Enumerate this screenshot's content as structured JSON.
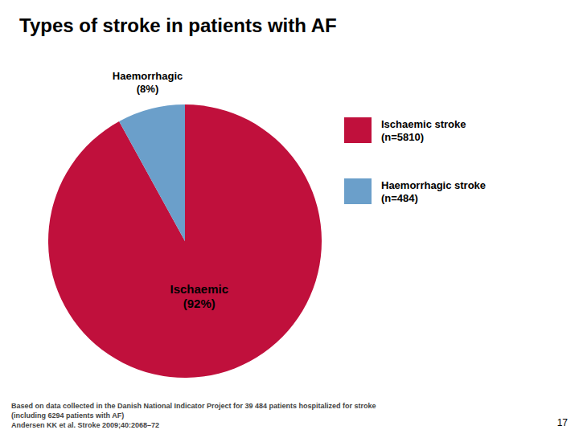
{
  "chart_data": {
    "type": "pie",
    "title": "Types of stroke in patients with AF",
    "categories": [
      "Ischaemic stroke\n(n=5810)",
      "Haemorrhagic stroke\n(n=484)"
    ],
    "values": [
      92,
      8
    ],
    "value_labels": [
      "Ischaemic\n(92%)",
      "Haemorrhagic\n(8%)"
    ],
    "colors": [
      "#C0103C",
      "#6B9FCA"
    ],
    "data_labels": true,
    "legend": "right",
    "annotations": [
      "Based on data collected in the Danish National Indicator Project for 39 484 patients hospitalized for stroke",
      "(including 6294 patients with AF)",
      "Andersen KK et al. Stroke 2009;40:2068–72",
      "17"
    ]
  }
}
